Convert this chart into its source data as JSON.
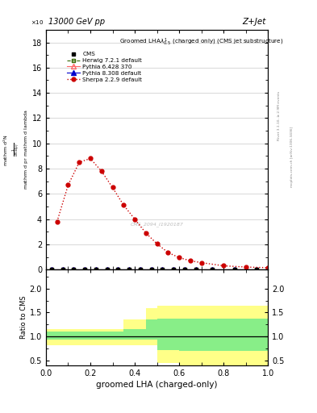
{
  "title_left": "13000 GeV pp",
  "title_right": "Z+Jet",
  "xlabel": "groomed LHA (charged-only)",
  "ylabel_main_lines": [
    "mathrm d²N",
    "mathrm d p_T mathrm d lambda"
  ],
  "ylabel_ratio": "Ratio to CMS",
  "rivet_label": "Rivet 3.1.10, ≥ 2.9M events",
  "mcplots_label": "mcplots.cern.ch [arXiv:1306.3436]",
  "cms_watermark": "CMS_2094_I1920187",
  "sherpa_x": [
    0.05,
    0.1,
    0.15,
    0.2,
    0.25,
    0.3,
    0.35,
    0.4,
    0.45,
    0.5,
    0.55,
    0.6,
    0.65,
    0.7,
    0.8,
    0.9,
    1.0
  ],
  "sherpa_y": [
    3.8,
    6.7,
    8.5,
    8.8,
    7.8,
    6.5,
    5.1,
    4.0,
    2.9,
    2.05,
    1.35,
    0.95,
    0.7,
    0.55,
    0.3,
    0.2,
    0.15
  ],
  "cms_x": [
    0.025,
    0.075,
    0.125,
    0.175,
    0.225,
    0.275,
    0.325,
    0.375,
    0.425,
    0.475,
    0.525,
    0.575,
    0.625,
    0.675,
    0.75,
    0.85,
    0.95
  ],
  "cms_y": [
    0.0,
    0.0,
    0.0,
    0.0,
    0.0,
    0.0,
    0.0,
    0.0,
    0.0,
    0.0,
    0.0,
    0.0,
    0.0,
    0.0,
    0.0,
    0.0,
    0.0
  ],
  "herwig_x": [
    0.025,
    0.075,
    0.125,
    0.175,
    0.225,
    0.275,
    0.325,
    0.375,
    0.425,
    0.475,
    0.525,
    0.575,
    0.625,
    0.675,
    0.75,
    0.85,
    0.95
  ],
  "herwig_y": [
    0.0,
    0.0,
    0.0,
    0.0,
    0.0,
    0.0,
    0.0,
    0.0,
    0.0,
    0.0,
    0.0,
    0.0,
    0.0,
    0.0,
    0.0,
    0.0,
    0.0
  ],
  "pythia6_x": [
    0.025,
    0.075,
    0.125,
    0.175,
    0.225,
    0.275,
    0.325,
    0.375,
    0.425,
    0.475,
    0.525,
    0.575,
    0.625,
    0.675,
    0.75,
    0.85,
    0.95
  ],
  "pythia6_y": [
    0.0,
    0.0,
    0.0,
    0.0,
    0.0,
    0.0,
    0.0,
    0.0,
    0.0,
    0.0,
    0.0,
    0.0,
    0.0,
    0.0,
    0.0,
    0.0,
    0.0
  ],
  "pythia8_x": [
    0.025,
    0.075,
    0.125,
    0.175,
    0.225,
    0.275,
    0.325,
    0.375,
    0.425,
    0.475,
    0.525,
    0.575,
    0.625,
    0.675,
    0.75,
    0.85,
    0.95
  ],
  "pythia8_y": [
    0.0,
    0.0,
    0.0,
    0.0,
    0.0,
    0.0,
    0.0,
    0.0,
    0.0,
    0.0,
    0.0,
    0.0,
    0.0,
    0.0,
    0.0,
    0.0,
    0.0
  ],
  "ratio_bins": [
    0.0,
    0.05,
    0.1,
    0.15,
    0.2,
    0.25,
    0.3,
    0.35,
    0.4,
    0.45,
    0.5,
    0.55,
    0.6,
    0.65,
    0.7,
    0.8,
    0.9,
    1.0
  ],
  "ratio_yellow_lo": [
    0.82,
    0.82,
    0.82,
    0.82,
    0.82,
    0.82,
    0.82,
    0.82,
    0.82,
    0.82,
    0.45,
    0.45,
    0.4,
    0.4,
    0.4,
    0.4,
    0.4
  ],
  "ratio_yellow_hi": [
    1.15,
    1.15,
    1.15,
    1.15,
    1.15,
    1.15,
    1.15,
    1.35,
    1.35,
    1.6,
    1.65,
    1.65,
    1.65,
    1.65,
    1.65,
    1.65,
    1.65
  ],
  "ratio_green_lo": [
    0.93,
    0.93,
    0.93,
    0.93,
    0.93,
    0.93,
    0.93,
    0.93,
    0.93,
    0.93,
    0.72,
    0.72,
    0.7,
    0.7,
    0.7,
    0.7,
    0.7
  ],
  "ratio_green_hi": [
    1.1,
    1.1,
    1.1,
    1.1,
    1.1,
    1.1,
    1.1,
    1.15,
    1.15,
    1.35,
    1.38,
    1.38,
    1.38,
    1.38,
    1.38,
    1.38,
    1.38
  ],
  "xlim": [
    0.0,
    1.0
  ],
  "ylim_main": [
    0,
    19
  ],
  "ylim_ratio": [
    0.39,
    2.4
  ],
  "yticks_main": [
    0,
    2,
    4,
    6,
    8,
    10,
    12,
    14,
    16,
    18
  ],
  "yticks_ratio": [
    0.5,
    1.0,
    1.5,
    2.0
  ],
  "color_cms": "#000000",
  "color_herwig": "#336600",
  "color_pythia6": "#ff6666",
  "color_pythia8": "#0000cc",
  "color_sherpa": "#cc0000",
  "color_yellow": "#ffff88",
  "color_green": "#88ee88",
  "bg_color": "#ffffff"
}
